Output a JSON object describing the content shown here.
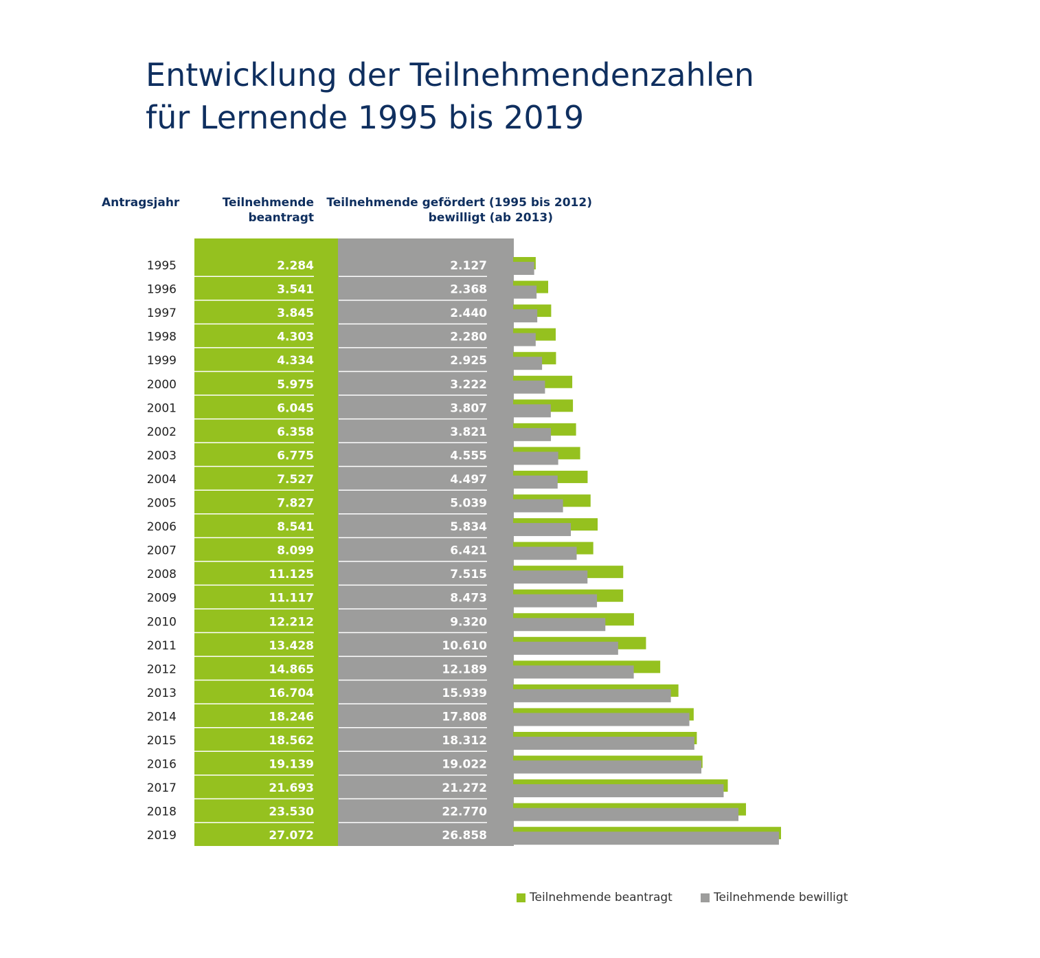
{
  "title": [
    "Entwicklung der Teilnehmendenzahlen",
    "für Lernende 1995 bis 2019"
  ],
  "headers": {
    "year": "Antragsjahr",
    "requested": [
      "Teilnehmende",
      "beantragt"
    ],
    "approved": [
      "Teilnehmende gefördert (1995 bis 2012)",
      "bewilligt (ab 2013)"
    ]
  },
  "colors": {
    "requested": "#95c11f",
    "approved": "#9d9d9c",
    "title": "#0f2f5f"
  },
  "chart_data": {
    "type": "bar",
    "orientation": "horizontal",
    "categories": [
      "1995",
      "1996",
      "1997",
      "1998",
      "1999",
      "2000",
      "2001",
      "2002",
      "2003",
      "2004",
      "2005",
      "2006",
      "2007",
      "2008",
      "2009",
      "2010",
      "2011",
      "2012",
      "2013",
      "2014",
      "2015",
      "2016",
      "2017",
      "2018",
      "2019"
    ],
    "series": [
      {
        "name": "Teilnehmende beantragt",
        "values": [
          2284,
          3541,
          3845,
          4303,
          4334,
          5975,
          6045,
          6358,
          6775,
          7527,
          7827,
          8541,
          8099,
          11125,
          11117,
          12212,
          13428,
          14865,
          16704,
          18246,
          18562,
          19139,
          21693,
          23530,
          27072
        ],
        "labels": [
          "2.284",
          "3.541",
          "3.845",
          "4.303",
          "4.334",
          "5.975",
          "6.045",
          "6.358",
          "6.775",
          "7.527",
          "7.827",
          "8.541",
          "8.099",
          "11.125",
          "11.117",
          "12.212",
          "13.428",
          "14.865",
          "16.704",
          "18.246",
          "18.562",
          "19.139",
          "21.693",
          "23.530",
          "27.072"
        ]
      },
      {
        "name": "Teilnehmende bewilligt",
        "values": [
          2127,
          2368,
          2440,
          2280,
          2925,
          3222,
          3807,
          3821,
          4555,
          4497,
          5039,
          5834,
          6421,
          7515,
          8473,
          9320,
          10610,
          12189,
          15939,
          17808,
          18312,
          19022,
          21272,
          22770,
          26858
        ],
        "labels": [
          "2.127",
          "2.368",
          "2.440",
          "2.280",
          "2.925",
          "3.222",
          "3.807",
          "3.821",
          "4.555",
          "4.497",
          "5.039",
          "5.834",
          "6.421",
          "7.515",
          "8.473",
          "9.320",
          "10.610",
          "12.189",
          "15.939",
          "17.808",
          "18.312",
          "19.022",
          "21.272",
          "22.770",
          "26.858"
        ]
      }
    ],
    "legend": "bottom-right",
    "grid": false
  }
}
